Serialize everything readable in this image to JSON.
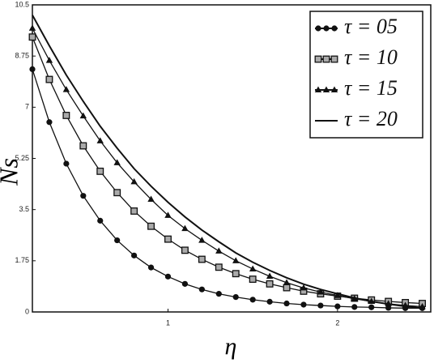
{
  "chart_data": {
    "type": "line",
    "x_label": "η",
    "y_label": "Ns",
    "x": [
      0.2,
      0.3,
      0.4,
      0.5,
      0.6,
      0.7,
      0.8,
      0.9,
      1.0,
      1.1,
      1.2,
      1.3,
      1.4,
      1.5,
      1.6,
      1.7,
      1.8,
      1.9,
      2.0,
      2.1,
      2.2,
      2.3,
      2.4,
      2.5
    ],
    "series": [
      {
        "name": "τ = 05",
        "color": "#111111",
        "marker": "circle",
        "values": [
          8.3,
          6.49,
          5.07,
          3.97,
          3.12,
          2.45,
          1.93,
          1.52,
          1.21,
          0.96,
          0.77,
          0.62,
          0.51,
          0.42,
          0.35,
          0.29,
          0.25,
          0.22,
          0.19,
          0.17,
          0.16,
          0.14,
          0.13,
          0.13
        ]
      },
      {
        "name": "τ = 10",
        "color": "#111111",
        "marker": "square",
        "values": [
          9.4,
          7.95,
          6.72,
          5.68,
          4.81,
          4.08,
          3.45,
          2.93,
          2.49,
          2.11,
          1.8,
          1.53,
          1.31,
          1.12,
          0.96,
          0.83,
          0.71,
          0.62,
          0.54,
          0.47,
          0.41,
          0.36,
          0.32,
          0.29
        ]
      },
      {
        "name": "τ = 15",
        "color": "#111111",
        "marker": "triangle",
        "values": [
          9.7,
          8.6,
          7.6,
          6.7,
          5.85,
          5.1,
          4.45,
          3.85,
          3.3,
          2.85,
          2.45,
          2.08,
          1.75,
          1.47,
          1.22,
          1.0,
          0.82,
          0.68,
          0.56,
          0.45,
          0.36,
          0.28,
          0.22,
          0.18
        ]
      },
      {
        "name": "τ = 20",
        "color": "#111111",
        "marker": "none",
        "values": [
          10.15,
          9.1,
          8.1,
          7.2,
          6.35,
          5.6,
          4.9,
          4.3,
          3.75,
          3.25,
          2.8,
          2.4,
          2.02,
          1.7,
          1.42,
          1.17,
          0.95,
          0.77,
          0.62,
          0.48,
          0.36,
          0.27,
          0.19,
          0.13
        ]
      }
    ],
    "xlim": [
      0.2,
      2.55
    ],
    "xticks": [
      1,
      2
    ],
    "ylim": [
      0,
      10.5
    ],
    "yticks": [
      0,
      1.75,
      3.5,
      5.25,
      7,
      8.75,
      10.5
    ],
    "grid": false,
    "legend": "upper right"
  }
}
